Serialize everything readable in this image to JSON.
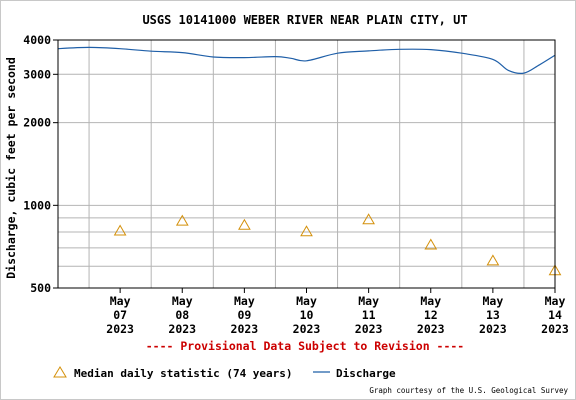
{
  "chart_data": {
    "type": "line",
    "title": "USGS 10141000 WEBER RIVER NEAR PLAIN CITY, UT",
    "ylabel": "Discharge, cubic feet per second",
    "xlabel": "",
    "y_scale": "log",
    "ylim": [
      500,
      4000
    ],
    "y_ticks": [
      {
        "value": 500,
        "label": "500"
      },
      {
        "value": 1000,
        "label": "1000"
      },
      {
        "value": 2000,
        "label": "2000"
      },
      {
        "value": 3000,
        "label": "3000"
      },
      {
        "value": 4000,
        "label": "4000"
      }
    ],
    "y_grid": [
      500,
      600,
      700,
      800,
      900,
      1000,
      2000,
      3000,
      4000
    ],
    "xlim": [
      "2023-05-06T12:00",
      "2023-05-14T12:00"
    ],
    "x_day_boundaries": [
      "2023-05-07",
      "2023-05-08",
      "2023-05-09",
      "2023-05-10",
      "2023-05-11",
      "2023-05-12",
      "2023-05-13",
      "2023-05-14"
    ],
    "categories": [
      {
        "date": "2023-05-07T12:00",
        "month": "May",
        "day": "07",
        "year": "2023"
      },
      {
        "date": "2023-05-08T12:00",
        "month": "May",
        "day": "08",
        "year": "2023"
      },
      {
        "date": "2023-05-09T12:00",
        "month": "May",
        "day": "09",
        "year": "2023"
      },
      {
        "date": "2023-05-10T12:00",
        "month": "May",
        "day": "10",
        "year": "2023"
      },
      {
        "date": "2023-05-11T12:00",
        "month": "May",
        "day": "11",
        "year": "2023"
      },
      {
        "date": "2023-05-12T12:00",
        "month": "May",
        "day": "12",
        "year": "2023"
      },
      {
        "date": "2023-05-13T12:00",
        "month": "May",
        "day": "13",
        "year": "2023"
      },
      {
        "date": "2023-05-14T12:00",
        "month": "May",
        "day": "14",
        "year": "2023"
      }
    ],
    "series": [
      {
        "name": "Discharge",
        "kind": "line",
        "color": "#1f5fa8",
        "points": [
          [
            "2023-05-06T12:00",
            3720
          ],
          [
            "2023-05-07T00:00",
            3760
          ],
          [
            "2023-05-07T12:00",
            3720
          ],
          [
            "2023-05-08T00:00",
            3640
          ],
          [
            "2023-05-08T12:00",
            3600
          ],
          [
            "2023-05-09T00:00",
            3470
          ],
          [
            "2023-05-09T12:00",
            3450
          ],
          [
            "2023-05-10T00:00",
            3480
          ],
          [
            "2023-05-10T06:00",
            3430
          ],
          [
            "2023-05-10T12:00",
            3360
          ],
          [
            "2023-05-11T00:00",
            3580
          ],
          [
            "2023-05-11T12:00",
            3650
          ],
          [
            "2023-05-12T00:00",
            3700
          ],
          [
            "2023-05-12T12:00",
            3690
          ],
          [
            "2023-05-13T00:00",
            3580
          ],
          [
            "2023-05-13T12:00",
            3400
          ],
          [
            "2023-05-13T18:00",
            3100
          ],
          [
            "2023-05-14T00:00",
            3030
          ],
          [
            "2023-05-14T06:00",
            3250
          ],
          [
            "2023-05-14T12:00",
            3520
          ]
        ]
      },
      {
        "name": "Median daily statistic (74 years)",
        "kind": "markers",
        "marker": "triangle",
        "color": "#d4900a",
        "points": [
          [
            "2023-05-07T12:00",
            810
          ],
          [
            "2023-05-08T12:00",
            880
          ],
          [
            "2023-05-09T12:00",
            850
          ],
          [
            "2023-05-10T12:00",
            805
          ],
          [
            "2023-05-11T12:00",
            890
          ],
          [
            "2023-05-12T12:00",
            720
          ],
          [
            "2023-05-13T12:00",
            630
          ],
          [
            "2023-05-14T12:00",
            580
          ]
        ]
      }
    ],
    "legend_position": "bottom",
    "provisional_note": "---- Provisional Data Subject to Revision ----",
    "credit": "Graph courtesy of the U.S. Geological Survey",
    "colors": {
      "frame": "#000000",
      "grid": "#b4b4b4",
      "provisional": "#cc0000",
      "background": "#ffffff"
    }
  }
}
